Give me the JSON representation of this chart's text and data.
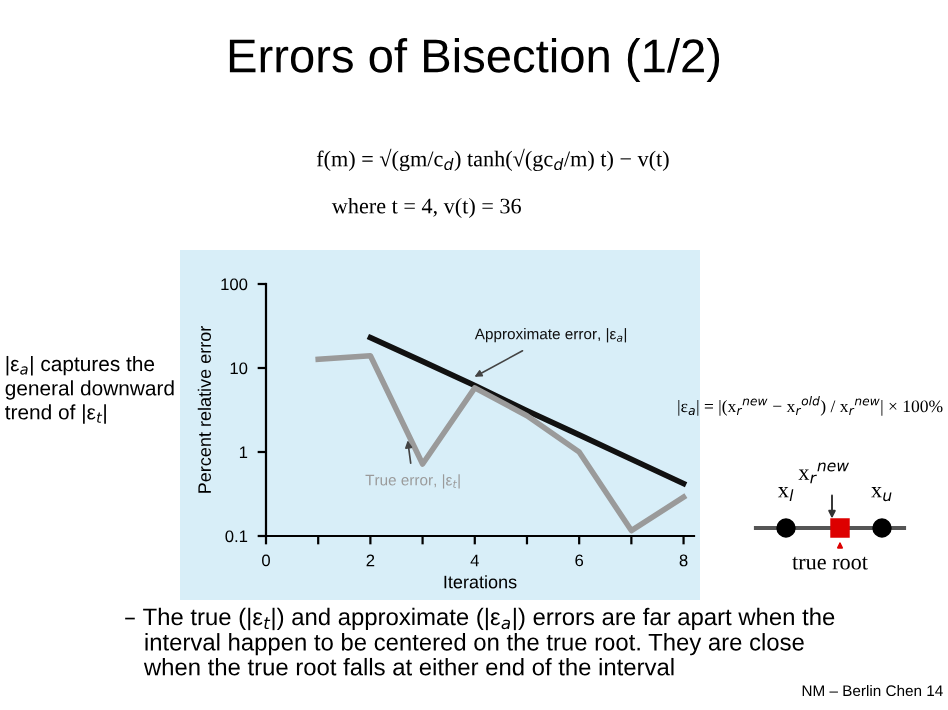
{
  "chart_data": {
    "type": "line",
    "title": "Errors of Bisection (1/2)",
    "xlabel": "Iterations",
    "ylabel": "Percent relative error",
    "series": [
      {
        "name": "Approximate error, |ε$_{a}$|",
        "color": "#111111",
        "x": [
          2,
          3,
          4,
          5,
          6,
          7,
          8
        ],
        "values": [
          23,
          12,
          6.2,
          3.1,
          1.6,
          0.82,
          0.42
        ]
      },
      {
        "name": "True error, |ε$_{t}$|",
        "color": "#9a9a9a",
        "x": [
          1,
          2,
          3,
          4,
          5,
          6,
          7,
          8
        ],
        "values": [
          12.7,
          14,
          0.72,
          5.8,
          2.7,
          1.0,
          0.116,
          0.29
        ]
      }
    ],
    "log": "y",
    "xlim": [
      0,
      8.2
    ],
    "ylim": [
      0.1,
      100
    ],
    "xticks": [
      0,
      {
        "value": 1,
        "label": null
      },
      2,
      {
        "value": 3,
        "label": null
      },
      4,
      {
        "value": 5,
        "label": null
      },
      6,
      {
        "value": 7,
        "label": null
      },
      8
    ],
    "yticks": [
      0.1,
      1,
      10,
      100
    ],
    "grid": false,
    "legend": false,
    "marker": "none",
    "line_style": "solid",
    "annotations": [
      "f(m) = √(gm/c$_{d}$) tanh(√(gc$_{d}$/m) t) − v(t)",
      "where t = 4, v(t) = 36",
      "|ε$_{a}$| captures the\ngeneral downward\ntrend of |ε$_{t}$|",
      "|ε$_{a}$| = |(x$_{r}$$^{new}$ − x$_{r}$$^{old}$) / x$_{r}$$^{new}$| × 100%",
      "x$_{r}$$^{new}$",
      "x$_{l}$",
      "x$_{u}$",
      "true root",
      "– The true (|ε$_{t}$|) and approximate (|ε$_{a}$|) errors are far apart when the\n   interval happen to be centered on the true root. They are close\n   when the true root falls at either end of the interval",
      "NM – Berlin Chen 14"
    ]
  }
}
